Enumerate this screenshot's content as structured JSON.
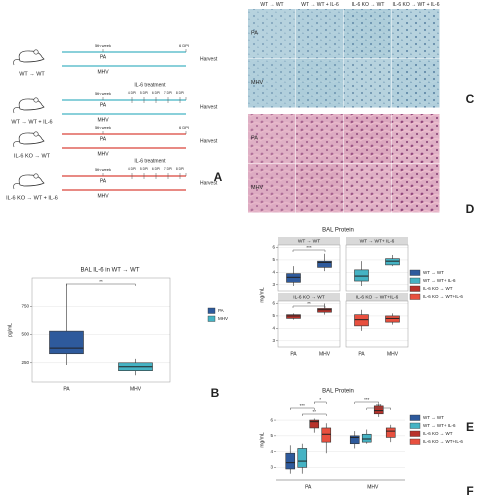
{
  "panel_a": {
    "letter": "A",
    "schemes": [
      {
        "label": "WT → WT",
        "line_color": "#45b3c4",
        "start": "5th week",
        "end": "6 DPI",
        "top": "PA",
        "bottom": "MHV",
        "end_label": "Harvest"
      },
      {
        "label": "WT → WT + IL-6",
        "line_color": "#45b3c4",
        "start": "5th week",
        "treatment": "IL-6 treatment",
        "treatment_days": [
          "4 DPI",
          "5 DPI",
          "6 DPI",
          "7 DPI",
          "8 DPI"
        ],
        "top": "PA",
        "bottom": "MHV",
        "end_label": "Harvest"
      },
      {
        "label": "IL-6 KO → WT",
        "line_color": "#d9443a",
        "start": "5th week",
        "end": "6 DPI",
        "top": "PA",
        "bottom": "MHV",
        "end_label": "Harvest"
      },
      {
        "label": "IL-6 KO → WT + IL-6",
        "line_color": "#d9443a",
        "start": "5th week",
        "treatment": "IL-6 treatment",
        "treatment_days": [
          "4 DPI",
          "5 DPI",
          "6 DPI",
          "7 DPI",
          "8 DPI"
        ],
        "top": "PA",
        "bottom": "MHV",
        "end_label": "Harvest"
      }
    ]
  },
  "histology": [
    {
      "letter": "C",
      "columns": [
        "WT → WT",
        "WT → WT + IL-6",
        "IL-6 KO → WT",
        "IL-6 KO → WT + IL-6"
      ],
      "rows": [
        "PA",
        "MHV"
      ]
    },
    {
      "letter": "D",
      "rows": [
        "PA",
        "MHV"
      ]
    }
  ],
  "chart_data": [
    {
      "type": "box",
      "letter": "B",
      "title": "BAL IL-6 in WT → WT",
      "y_label": "pg/mL",
      "categories": [
        "PA",
        "MHV"
      ],
      "series": [
        {
          "name": "PA",
          "color": "#2e5a9c",
          "values": [
            230,
            330,
            380,
            530,
            950
          ]
        },
        {
          "name": "MHV",
          "color": "#45b3c4",
          "values": [
            140,
            180,
            215,
            250,
            285
          ]
        }
      ],
      "ylim": [
        80,
        1000
      ],
      "yticks": [
        250,
        500,
        750
      ],
      "annotations": [
        "**"
      ]
    },
    {
      "type": "box",
      "letter": "E",
      "title": "BAL Protein",
      "y_label": "mg/mL",
      "categories": [
        "PA",
        "MHV"
      ],
      "series": [
        {
          "name": "WT → WT",
          "color": "#2e5a9c"
        },
        {
          "name": "WT → WT+ IL-6",
          "color": "#45b3c4"
        },
        {
          "name": "IL-6 KO → WT",
          "color": "#b8322b"
        },
        {
          "name": "IL-6 KO → WT+IL-6",
          "color": "#e8503f"
        }
      ],
      "facets": [
        {
          "title": "WT → WT",
          "values": [
            [
              2.9,
              3.2,
              3.6,
              3.9,
              4.5
            ],
            [
              4.1,
              4.4,
              4.8,
              4.9,
              5.5
            ]
          ]
        },
        {
          "title": "WT → WT+ IL-6",
          "values": [
            [
              2.9,
              3.3,
              3.7,
              4.2,
              4.9
            ],
            [
              4.5,
              4.6,
              4.9,
              5.1,
              5.4
            ]
          ]
        },
        {
          "title": "IL-6 KO → WT",
          "values": [
            [
              4.7,
              4.8,
              5.0,
              5.1,
              5.2
            ],
            [
              5.1,
              5.3,
              5.5,
              5.6,
              6.0
            ]
          ]
        },
        {
          "title": "IL-6 KO → WT+IL-6",
          "values": [
            [
              3.8,
              4.2,
              4.7,
              5.1,
              5.5
            ],
            [
              4.3,
              4.5,
              4.8,
              5.0,
              5.2
            ]
          ]
        }
      ],
      "ylim": [
        2.5,
        6.2
      ],
      "yticks": [
        3,
        4,
        5,
        6
      ],
      "annotations": [
        "***",
        "**"
      ]
    },
    {
      "type": "box",
      "letter": "F",
      "title": "BAL Protein",
      "y_label": "mg/mL",
      "categories": [
        "PA",
        "MHV"
      ],
      "series": [
        {
          "name": "WT → WT",
          "color": "#2e5a9c",
          "values": [
            [
              2.6,
              2.9,
              3.3,
              3.9,
              4.4
            ],
            [
              4.2,
              4.5,
              4.9,
              5.0,
              5.3
            ]
          ]
        },
        {
          "name": "WT → WT+ IL-6",
          "color": "#45b3c4",
          "values": [
            [
              2.6,
              3.0,
              3.4,
              4.2,
              4.5
            ],
            [
              4.5,
              4.6,
              4.8,
              5.1,
              5.4
            ]
          ]
        },
        {
          "name": "IL-6 KO → WT",
          "color": "#b8322b",
          "values": [
            [
              5.2,
              5.5,
              5.9,
              6.0,
              6.1
            ],
            [
              6.2,
              6.4,
              6.6,
              6.9,
              7.0
            ]
          ]
        },
        {
          "name": "IL-6 KO → WT+IL-6",
          "color": "#e8503f",
          "values": [
            [
              3.9,
              4.6,
              5.1,
              5.5,
              5.8
            ],
            [
              4.6,
              4.9,
              5.3,
              5.5,
              5.7
            ]
          ]
        }
      ],
      "ylim": [
        2.2,
        7.4
      ],
      "yticks": [
        3,
        4,
        5,
        6
      ],
      "annotations": [
        "*",
        "***",
        "**",
        "***",
        "***"
      ]
    }
  ]
}
